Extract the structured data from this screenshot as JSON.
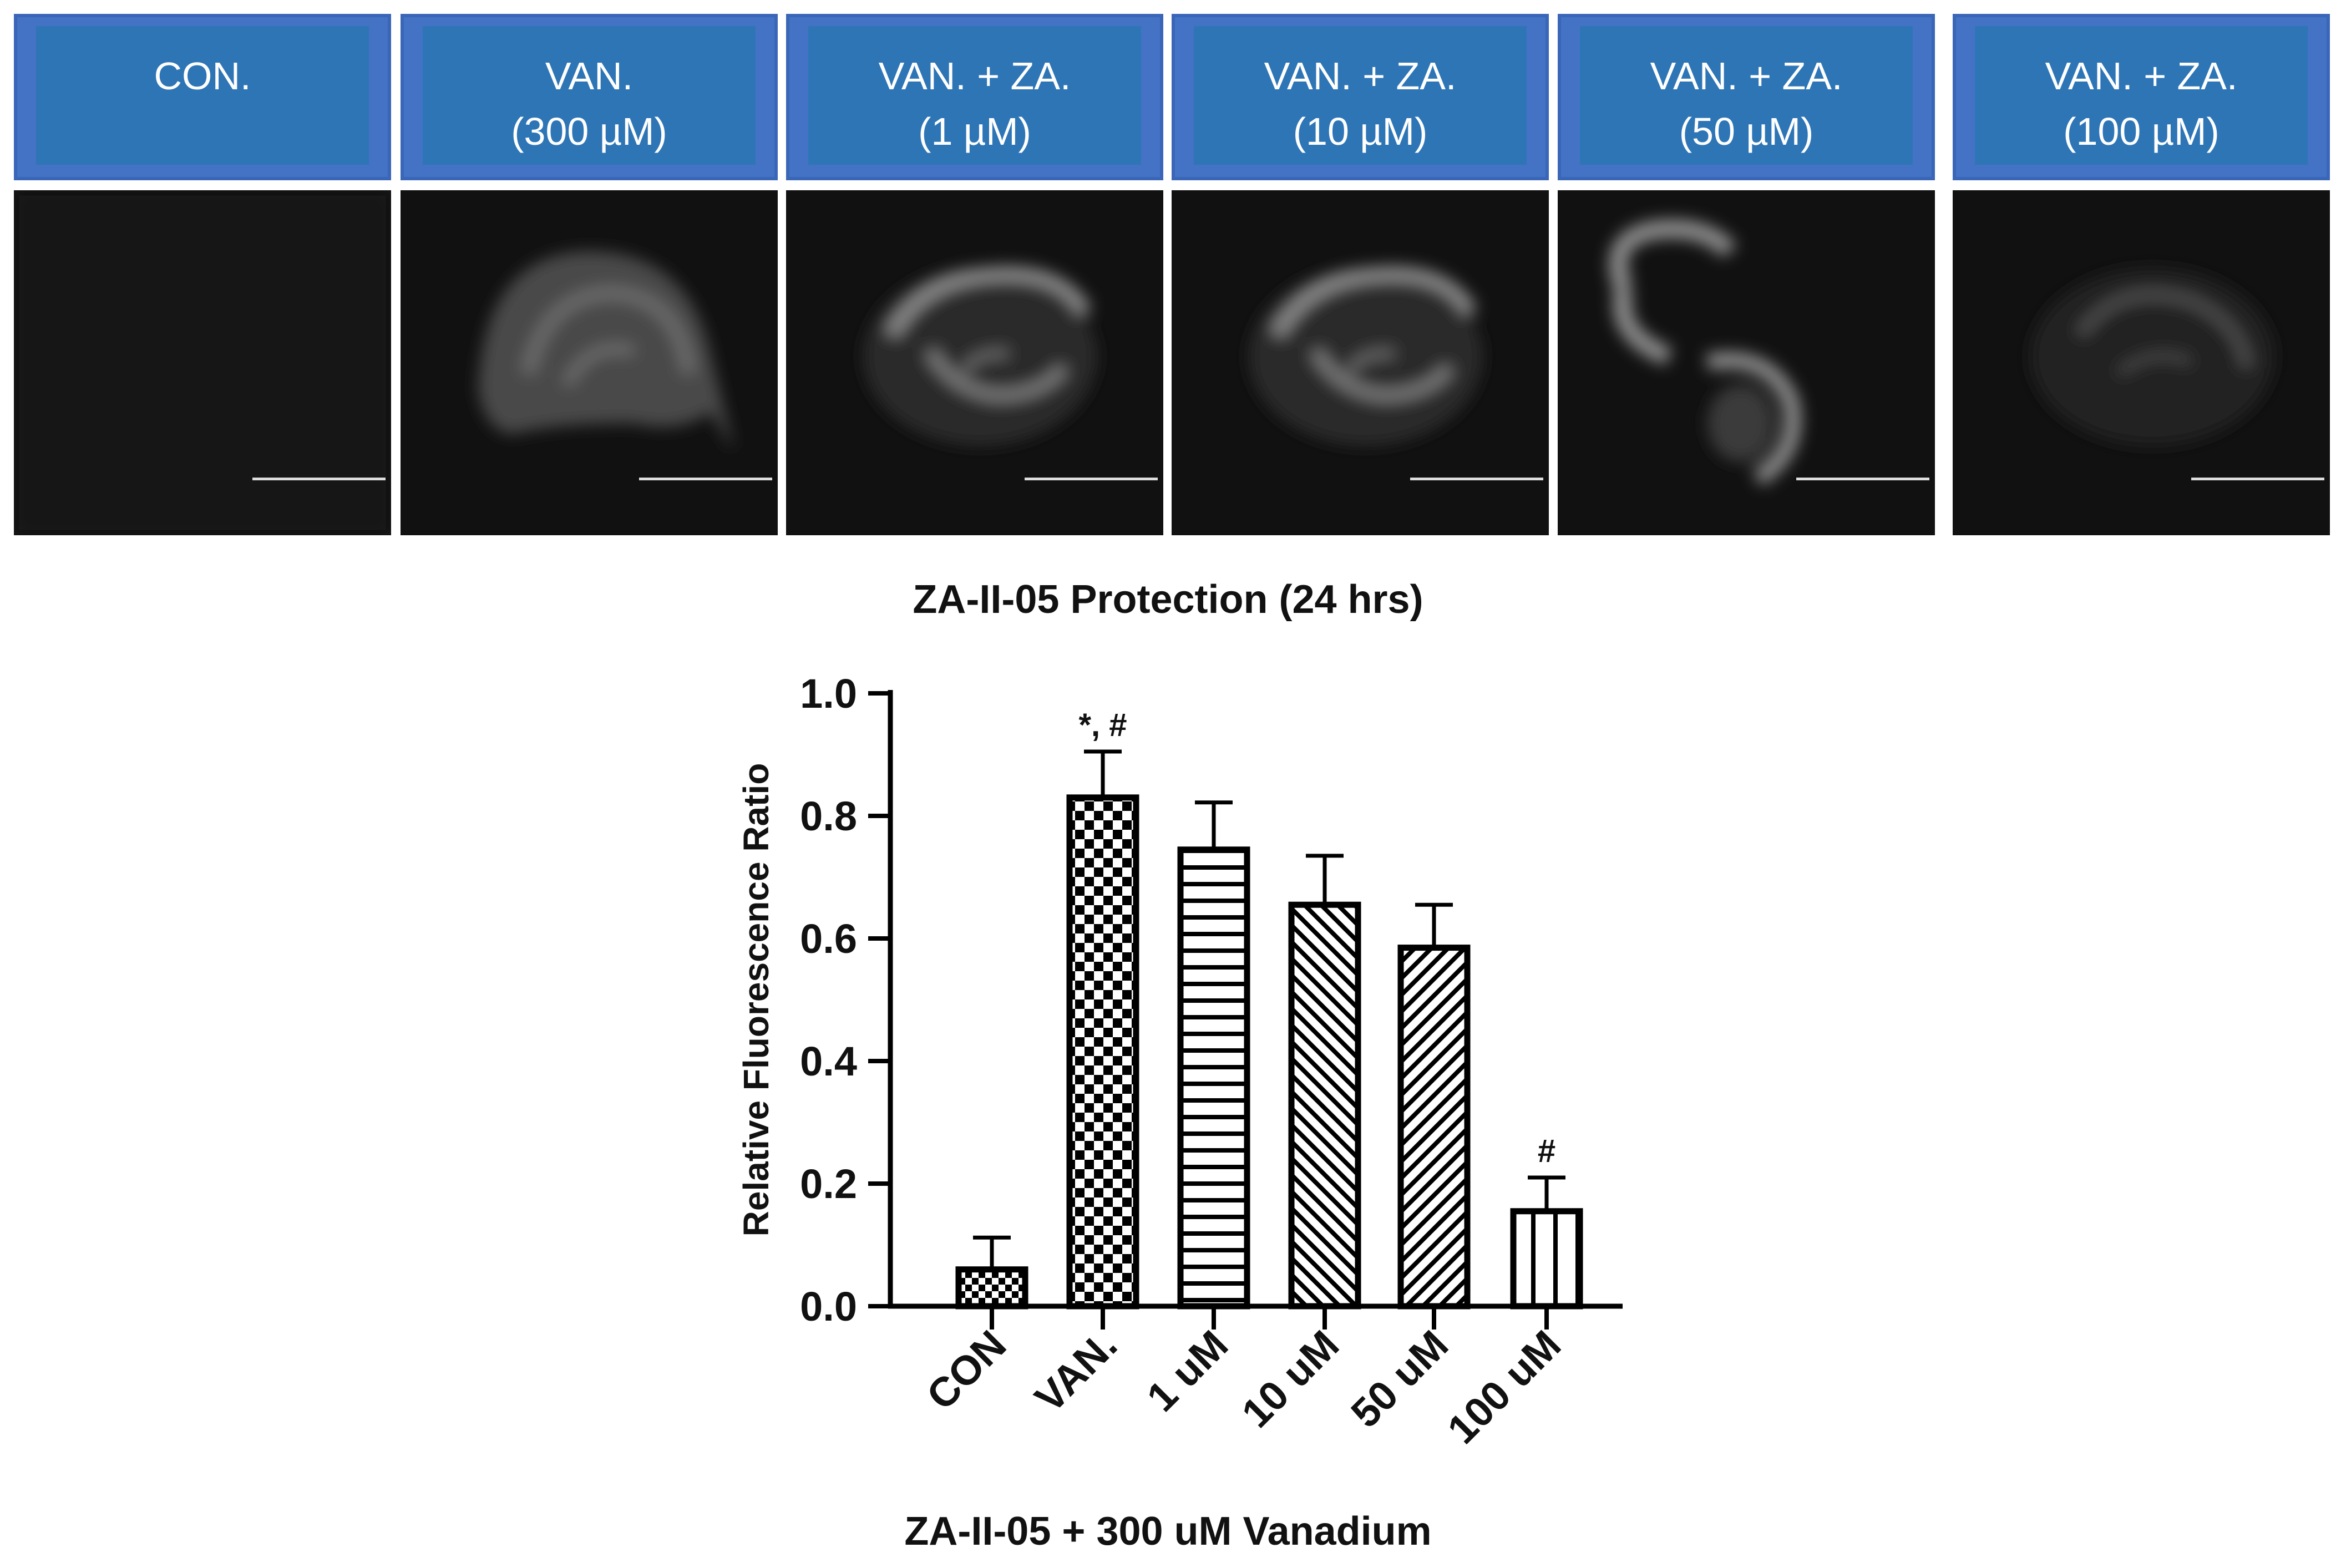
{
  "panels": [
    {
      "label_lines": [
        "CON.",
        ""
      ],
      "image": "control-blank"
    },
    {
      "label_lines": [
        "VAN.",
        "(300 µM)"
      ],
      "image": "dome"
    },
    {
      "label_lines": [
        "VAN. + ZA.",
        "(1 µM)"
      ],
      "image": "arc"
    },
    {
      "label_lines": [
        "VAN. + ZA.",
        "(10 µM)"
      ],
      "image": "arc"
    },
    {
      "label_lines": [
        "VAN. + ZA.",
        "(50 µM)"
      ],
      "image": "double-arc"
    },
    {
      "label_lines": [
        "VAN. + ZA.",
        "(100 µM)"
      ],
      "image": "faint-arc"
    }
  ],
  "colors": {
    "label_fill": "#2e75b6",
    "label_frame": "#4472c4",
    "micrograph_bg": "#111111"
  },
  "chart_data": {
    "type": "bar",
    "title": "ZA-II-05 Protection (24 hrs)",
    "xlabel": "ZA-II-05 + 300 uM Vanadium",
    "ylabel": "Relative Fluorescence Ratio",
    "ylim": [
      0,
      1.0
    ],
    "yticks": [
      "0.0",
      "0.2",
      "0.4",
      "0.6",
      "0.8",
      "1.0"
    ],
    "categories": [
      "CON",
      "VAN.",
      "1 uM",
      "10 uM",
      "50 uM",
      "100 uM"
    ],
    "values": [
      0.06,
      0.83,
      0.745,
      0.655,
      0.585,
      0.155
    ],
    "errors": [
      0.052,
      0.075,
      0.077,
      0.08,
      0.07,
      0.055
    ],
    "annotations": [
      "",
      "*, #",
      "",
      "",
      "",
      "#"
    ],
    "patterns": [
      "small-checker",
      "checker",
      "horizontal-lines",
      "back-diagonal",
      "forward-diagonal",
      "vertical-lines"
    ],
    "grid": false,
    "legend": "none"
  }
}
